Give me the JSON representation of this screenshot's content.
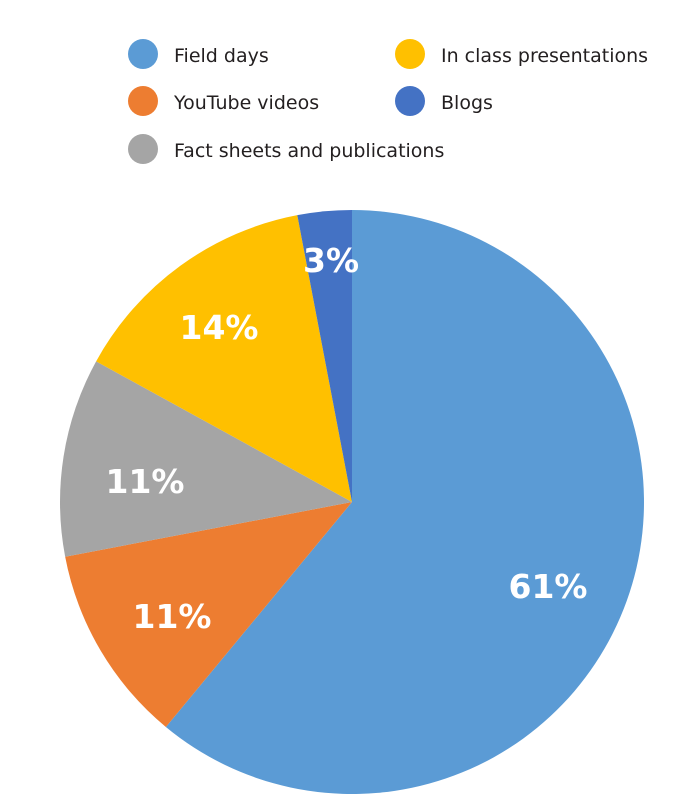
{
  "chart_data": {
    "type": "pie",
    "title": "",
    "legend_placement": "top",
    "start_angle_deg": 0,
    "direction": "clockwise",
    "slices": [
      {
        "name": "Field days",
        "value": 61,
        "label": "61%",
        "color": "#5b9bd5"
      },
      {
        "name": "YouTube videos",
        "value": 11,
        "label": "11%",
        "color": "#ed7d31"
      },
      {
        "name": "Fact sheets and publications",
        "value": 11,
        "label": "11%",
        "color": "#a5a5a5"
      },
      {
        "name": "In class presentations",
        "value": 14,
        "label": "14%",
        "color": "#ffc000"
      },
      {
        "name": "Blogs",
        "value": 3,
        "label": "3%",
        "color": "#4472c4"
      }
    ],
    "legend_order": [
      "Field days",
      "In class presentations",
      "YouTube videos",
      "Blogs",
      "Fact sheets and publications"
    ]
  }
}
